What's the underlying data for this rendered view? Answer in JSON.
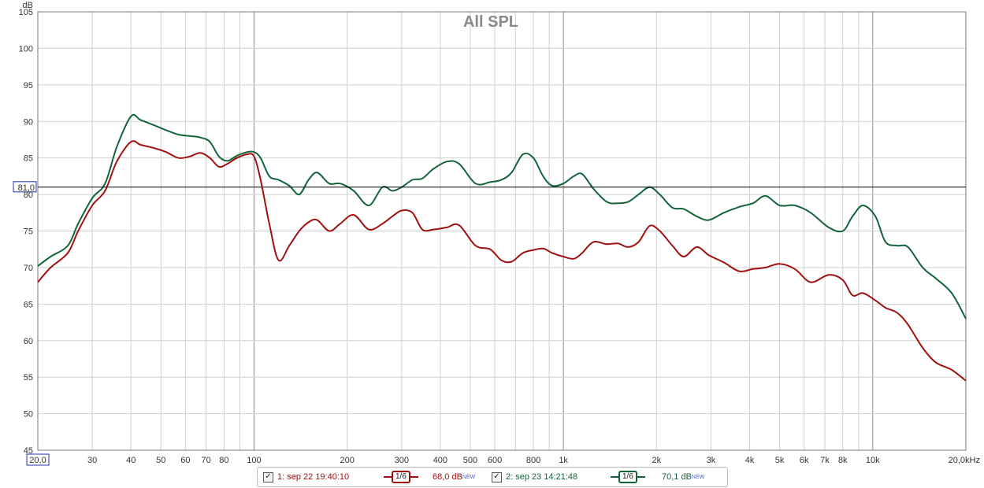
{
  "chart_data": {
    "type": "line",
    "title": "All SPL",
    "ylabel": "dB",
    "xunit": "kHz",
    "ylim": [
      45,
      105
    ],
    "xlim": [
      20,
      20000
    ],
    "x_scale": "log",
    "grid": true,
    "yticks": [
      "45",
      "50",
      "55",
      "60",
      "65",
      "70",
      "75",
      "80",
      "85",
      "90",
      "95",
      "100",
      "105"
    ],
    "xticks": [
      {
        "v": 30,
        "label": "30"
      },
      {
        "v": 40,
        "label": "40"
      },
      {
        "v": 50,
        "label": "50"
      },
      {
        "v": 60,
        "label": "60"
      },
      {
        "v": 70,
        "label": "70"
      },
      {
        "v": 80,
        "label": "80"
      },
      {
        "v": 100,
        "label": "100"
      },
      {
        "v": 200,
        "label": "200"
      },
      {
        "v": 300,
        "label": "300"
      },
      {
        "v": 400,
        "label": "400"
      },
      {
        "v": 500,
        "label": "500"
      },
      {
        "v": 600,
        "label": "600"
      },
      {
        "v": 800,
        "label": "800"
      },
      {
        "v": 1000,
        "label": "1k"
      },
      {
        "v": 2000,
        "label": "2k"
      },
      {
        "v": 3000,
        "label": "3k"
      },
      {
        "v": 4000,
        "label": "4k"
      },
      {
        "v": 5000,
        "label": "5k"
      },
      {
        "v": 6000,
        "label": "6k"
      },
      {
        "v": 7000,
        "label": "7k"
      },
      {
        "v": 8000,
        "label": "8k"
      },
      {
        "v": 10000,
        "label": "10k"
      }
    ],
    "x_start_label": "20,0",
    "x_end_label": "20,0kHz",
    "ref_level": 81.0,
    "ref_label": "81,0",
    "series": [
      {
        "color": "#a01010",
        "x": [
          20,
          22,
          25,
          27,
          30,
          33,
          36,
          40,
          43,
          48,
          52,
          57,
          62,
          67,
          72,
          77,
          82,
          88,
          95,
          100,
          105,
          112,
          120,
          130,
          140,
          150,
          160,
          175,
          190,
          210,
          235,
          260,
          280,
          300,
          325,
          350,
          380,
          420,
          460,
          520,
          580,
          630,
          680,
          740,
          800,
          860,
          920,
          1000,
          1080,
          1150,
          1250,
          1380,
          1500,
          1620,
          1750,
          1900,
          2050,
          2250,
          2450,
          2700,
          2950,
          3300,
          3700,
          4100,
          4500,
          5000,
          5600,
          6300,
          7200,
          8000,
          8600,
          9300,
          10200,
          11000,
          12000,
          13000,
          14500,
          16000,
          18000,
          20000
        ],
        "y": [
          68.0,
          70.0,
          72.0,
          75.0,
          78.5,
          80.5,
          84.5,
          87.2,
          86.8,
          86.3,
          85.8,
          85.0,
          85.2,
          85.7,
          85.0,
          83.8,
          84.2,
          85.0,
          85.5,
          85.2,
          82.0,
          76.0,
          71.0,
          73.0,
          75.0,
          76.2,
          76.5,
          75.0,
          76.0,
          77.2,
          75.2,
          76.0,
          77.0,
          77.8,
          77.5,
          75.2,
          75.2,
          75.5,
          75.8,
          73.0,
          72.5,
          71.0,
          70.8,
          72.0,
          72.4,
          72.6,
          72.0,
          71.5,
          71.2,
          72.0,
          73.5,
          73.2,
          73.3,
          72.8,
          73.5,
          75.7,
          75.0,
          73.0,
          71.5,
          72.8,
          71.7,
          70.7,
          69.5,
          69.8,
          70.0,
          70.5,
          69.8,
          68.0,
          69.0,
          68.3,
          66.2,
          66.5,
          65.5,
          64.5,
          63.8,
          62.2,
          59.0,
          57.0,
          56.0,
          54.5
        ]
      },
      {
        "color": "#13633a",
        "x": [
          20,
          22,
          25,
          27,
          30,
          33,
          36,
          40,
          43,
          48,
          52,
          57,
          62,
          67,
          72,
          77,
          82,
          88,
          95,
          100,
          105,
          112,
          120,
          130,
          140,
          150,
          160,
          175,
          190,
          210,
          235,
          260,
          280,
          300,
          325,
          350,
          380,
          420,
          460,
          520,
          580,
          630,
          680,
          740,
          800,
          860,
          920,
          1000,
          1080,
          1150,
          1250,
          1380,
          1500,
          1620,
          1750,
          1900,
          2050,
          2250,
          2450,
          2700,
          2950,
          3300,
          3700,
          4100,
          4500,
          5000,
          5600,
          6300,
          7200,
          8000,
          8600,
          9300,
          10200,
          11000,
          12000,
          13000,
          14500,
          16000,
          18000,
          20000
        ],
        "y": [
          70.2,
          71.5,
          73.0,
          76.0,
          79.5,
          81.5,
          86.5,
          90.7,
          90.2,
          89.4,
          88.8,
          88.2,
          88.0,
          87.8,
          87.2,
          85.2,
          84.6,
          85.3,
          85.8,
          85.8,
          85.0,
          82.5,
          82.0,
          81.2,
          80.0,
          82.0,
          83.0,
          81.5,
          81.5,
          80.5,
          78.5,
          81.0,
          80.5,
          81.0,
          82.0,
          82.2,
          83.5,
          84.5,
          84.2,
          81.5,
          81.7,
          82.0,
          83.0,
          85.5,
          85.0,
          82.5,
          81.2,
          81.5,
          82.5,
          82.8,
          80.8,
          79.0,
          78.8,
          79.0,
          80.0,
          81.0,
          80.0,
          78.2,
          78.0,
          77.0,
          76.5,
          77.5,
          78.3,
          78.8,
          79.8,
          78.5,
          78.5,
          77.5,
          75.5,
          75.0,
          77.0,
          78.5,
          77.0,
          73.5,
          73.0,
          72.8,
          70.0,
          68.5,
          66.5,
          63.0
        ]
      }
    ]
  },
  "legend": {
    "items": [
      {
        "label": "1: sep 22 19:40:10",
        "smoothing": "1/6",
        "level": "68,0 dB",
        "badge": "NEW",
        "color": "#a01010",
        "checked": "✓"
      },
      {
        "label": "2: sep 23 14:21:48",
        "smoothing": "1/6",
        "level": "70,1 dB",
        "badge": "NEW",
        "color": "#13633a",
        "checked": "✓"
      }
    ]
  }
}
